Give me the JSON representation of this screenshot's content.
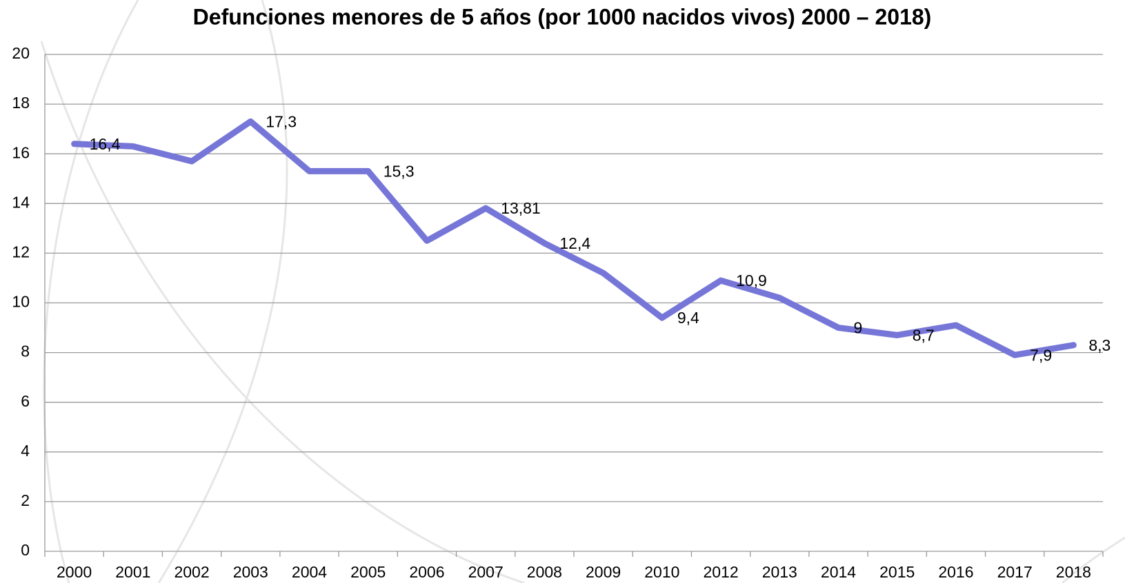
{
  "chart_data": {
    "type": "line",
    "title": "Defunciones menores de 5 años (por 1000 nacidos vivos) 2000 – 2018)",
    "categories": [
      "2000",
      "2001",
      "2002",
      "2003",
      "2004",
      "2005",
      "2006",
      "2007",
      "2008",
      "2009",
      "2010",
      "2012",
      "2013",
      "2014",
      "2015",
      "2016",
      "2017",
      "2018"
    ],
    "series": [
      {
        "name": "Defunciones",
        "color": "#7676d8",
        "values": [
          16.4,
          16.3,
          15.7,
          17.3,
          15.3,
          15.3,
          12.5,
          13.81,
          12.4,
          11.2,
          9.4,
          10.9,
          10.2,
          9,
          8.7,
          9.1,
          7.9,
          8.3
        ],
        "value_labels": [
          "16,4",
          null,
          null,
          "17,3",
          null,
          "15,3",
          null,
          "13,81",
          "12,4",
          null,
          "9,4",
          "10,9",
          null,
          "9",
          "8,7",
          null,
          "7,9",
          "8,3"
        ]
      }
    ],
    "ylim": [
      0,
      20
    ],
    "yticks": [
      0,
      2,
      4,
      6,
      8,
      10,
      12,
      14,
      16,
      18,
      20
    ],
    "grid": true
  }
}
